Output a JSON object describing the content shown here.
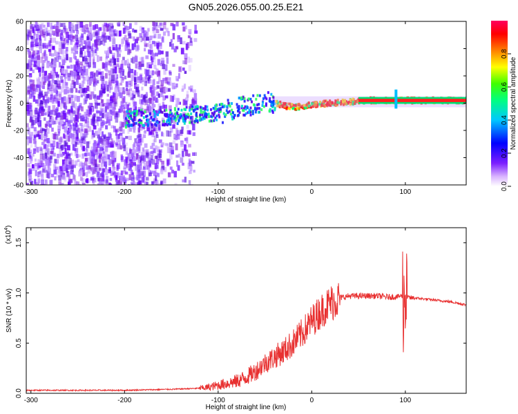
{
  "title": "GN05.2026.055.00.25.E21",
  "chart_data": [
    {
      "type": "heatmap",
      "title": "GN05.2026.055.00.25.E21",
      "xlabel": "Height of straight line (km)",
      "ylabel": "Frequency (Hz)",
      "xlim": [
        -305,
        165
      ],
      "ylim": [
        -60,
        60
      ],
      "xticks": [
        -300,
        -200,
        -100,
        0,
        100
      ],
      "yticks": [
        -60,
        -40,
        -20,
        0,
        20,
        40,
        60
      ],
      "xtick_labels": [
        "-300",
        "-200",
        "-100",
        "0",
        "100"
      ],
      "ytick_labels": [
        "-60",
        "-40",
        "-20",
        "0",
        "20",
        "40",
        "60"
      ],
      "colorbar": {
        "label": "Normalized spectral amplitude",
        "ticks": [
          0.0,
          0.2,
          0.4,
          0.6,
          0.8
        ],
        "tick_labels": [
          "0.0",
          "0.2",
          "0.4",
          "0.6",
          "0.8"
        ],
        "range": [
          0,
          1
        ],
        "colormap": [
          "#ffffff",
          "#6a00ff",
          "#0000ff",
          "#00ffff",
          "#00ff00",
          "#ffff00",
          "#ff8000",
          "#ff0000",
          "#ff0080"
        ]
      },
      "ridge": {
        "x": [
          -200,
          -180,
          -150,
          -120,
          -100,
          -80,
          -60,
          -50,
          -40,
          -30,
          -20,
          -10,
          0,
          20,
          40,
          60,
          80,
          100,
          130,
          165
        ],
        "frequency_hz": [
          -12,
          -11,
          -10,
          -8,
          -7,
          -4,
          0,
          2,
          0,
          -2,
          -3,
          -2,
          -1,
          0,
          1,
          2,
          2,
          2,
          2,
          2
        ]
      }
    },
    {
      "type": "line",
      "xlabel": "Height of straight line (km)",
      "ylabel": "SNR (10 * v/v)",
      "y_multiplier_label": "(x10",
      "y_multiplier_exp": "4",
      "y_multiplier_close": ")",
      "xlim": [
        -305,
        165
      ],
      "ylim": [
        0,
        1.65
      ],
      "xticks": [
        -300,
        -200,
        -100,
        0,
        100
      ],
      "yticks": [
        0.0,
        0.5,
        1.0,
        1.5
      ],
      "xtick_labels": [
        "-300",
        "-200",
        "-100",
        "0",
        "100"
      ],
      "ytick_labels": [
        "0.0",
        "0.5",
        "1.0",
        "1.5"
      ],
      "color": "#e83030",
      "series": [
        {
          "x": [
            -305,
            -250,
            -200,
            -150,
            -120,
            -110,
            -100,
            -90,
            -80,
            -70,
            -60,
            -50,
            -40,
            -30,
            -20,
            -10,
            0,
            10,
            20,
            30,
            40,
            50,
            60,
            70,
            80,
            90,
            95,
            100,
            105,
            110,
            130,
            150,
            165
          ],
          "values": [
            0.03,
            0.03,
            0.03,
            0.04,
            0.05,
            0.06,
            0.08,
            0.1,
            0.12,
            0.16,
            0.22,
            0.3,
            0.36,
            0.42,
            0.5,
            0.6,
            0.72,
            0.82,
            0.9,
            0.95,
            0.97,
            0.97,
            0.97,
            0.97,
            0.96,
            0.96,
            0.97,
            0.96,
            0.95,
            0.95,
            0.93,
            0.91,
            0.88
          ]
        }
      ]
    }
  ]
}
